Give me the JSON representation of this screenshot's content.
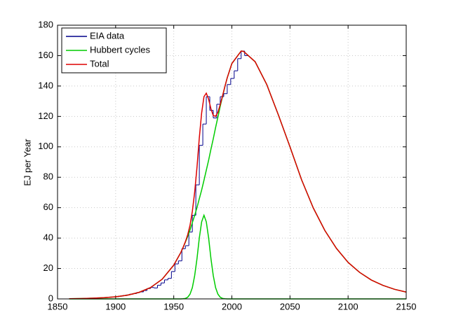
{
  "chart_data": {
    "type": "line",
    "ylabel": "EJ per Year",
    "xlim": [
      1850,
      2150
    ],
    "ylim": [
      0,
      180
    ],
    "xticks": [
      1850,
      1900,
      1950,
      2000,
      2050,
      2100,
      2150
    ],
    "yticks": [
      0,
      20,
      40,
      60,
      80,
      100,
      120,
      140,
      160,
      180
    ],
    "grid": true,
    "legend": "upper-left",
    "series": [
      {
        "name": "EIA data",
        "color": "#00008b",
        "drawstyle": "steps-post",
        "x": [
          1900,
          1903,
          1906,
          1909,
          1912,
          1915,
          1918,
          1921,
          1924,
          1927,
          1930,
          1933,
          1936,
          1939,
          1942,
          1945,
          1948,
          1951,
          1954,
          1957,
          1960,
          1963,
          1966,
          1969,
          1972,
          1975,
          1978,
          1981,
          1984,
          1987,
          1990,
          1993,
          1996,
          1999,
          2002,
          2005,
          2008,
          2011
        ],
        "values": [
          1.5,
          1.8,
          2.2,
          2.6,
          3.1,
          3.5,
          4.2,
          4.6,
          5.5,
          6.8,
          7.5,
          7.2,
          9.0,
          10.5,
          12.5,
          13.5,
          18,
          23,
          25,
          33,
          35,
          44,
          55,
          75,
          101,
          115,
          133,
          124,
          119,
          128,
          133,
          135,
          141,
          145,
          150,
          158,
          163,
          160
        ]
      },
      {
        "name": "Hubbert cycles",
        "color": "#00cc00",
        "x": [
          1860,
          1870,
          1880,
          1890,
          1900,
          1910,
          1920,
          1930,
          1940,
          1950,
          1956,
          1958,
          1960,
          1962,
          1964,
          1966,
          1968,
          1970,
          1972,
          1974,
          1976,
          1978,
          1980,
          1982,
          1984,
          1986,
          1988,
          1990,
          1992,
          1994,
          1996,
          2000,
          2008,
          2010,
          2020,
          2030,
          2040,
          2050,
          2060,
          2070,
          2080,
          2090,
          2100,
          2110,
          2120,
          2130,
          2140,
          2150
        ],
        "values": [
          0.1,
          0.25,
          0.44,
          0.78,
          1.37,
          2.4,
          4.26,
          7.44,
          12.9,
          22.2,
          30.4,
          33.7,
          37.3,
          41.1,
          45.3,
          50.2,
          54.9,
          60.1,
          65.9,
          71.6,
          78.0,
          84.6,
          91.2,
          98.5,
          105.3,
          112.7,
          119.6,
          126.7,
          133.3,
          139.6,
          145.4,
          154.8,
          163,
          162.8,
          156,
          141,
          121,
          100,
          78.3,
          59.9,
          45,
          33.2,
          24,
          17.4,
          12.4,
          8.9,
          6.3,
          4.5
        ]
      },
      {
        "color": "#00cc00",
        "x": [
          1860,
          1954,
          1956,
          1958,
          1960,
          1962,
          1964,
          1966,
          1968,
          1970,
          1972,
          1974,
          1976,
          1978,
          1980,
          1982,
          1984,
          1986,
          1988,
          1990,
          1992,
          1994,
          1996,
          1998,
          2150
        ],
        "values": [
          0,
          0,
          0,
          0.1,
          0.3,
          1.1,
          3.1,
          7.4,
          15.3,
          26.5,
          40.1,
          50.7,
          55,
          50.7,
          40.1,
          26.5,
          15.3,
          7.4,
          3.1,
          1.1,
          0.3,
          0.1,
          0,
          0,
          0
        ]
      },
      {
        "name": "Total",
        "color": "#dd0000",
        "x": [
          1860,
          1870,
          1880,
          1890,
          1900,
          1910,
          1920,
          1930,
          1940,
          1950,
          1956,
          1958,
          1960,
          1962,
          1964,
          1966,
          1968,
          1970,
          1972,
          1974,
          1976,
          1978,
          1980,
          1982,
          1984,
          1986,
          1988,
          1990,
          1992,
          1994,
          1996,
          2000,
          2008,
          2010,
          2020,
          2030,
          2040,
          2050,
          2060,
          2070,
          2080,
          2090,
          2100,
          2110,
          2120,
          2130,
          2140,
          2150
        ],
        "values": [
          0.1,
          0.25,
          0.44,
          0.78,
          1.37,
          2.4,
          4.26,
          7.44,
          12.9,
          22.2,
          30.4,
          33.8,
          37.6,
          42.2,
          48.4,
          57.6,
          70.2,
          86.6,
          106,
          122.3,
          133,
          135.3,
          131.3,
          125,
          120.6,
          120.1,
          122.7,
          127.8,
          133.6,
          139.7,
          145.4,
          154.8,
          163,
          162.8,
          156,
          141,
          121,
          100,
          78.3,
          59.9,
          45,
          33.2,
          24,
          17.4,
          12.4,
          8.9,
          6.3,
          4.5
        ]
      }
    ]
  }
}
